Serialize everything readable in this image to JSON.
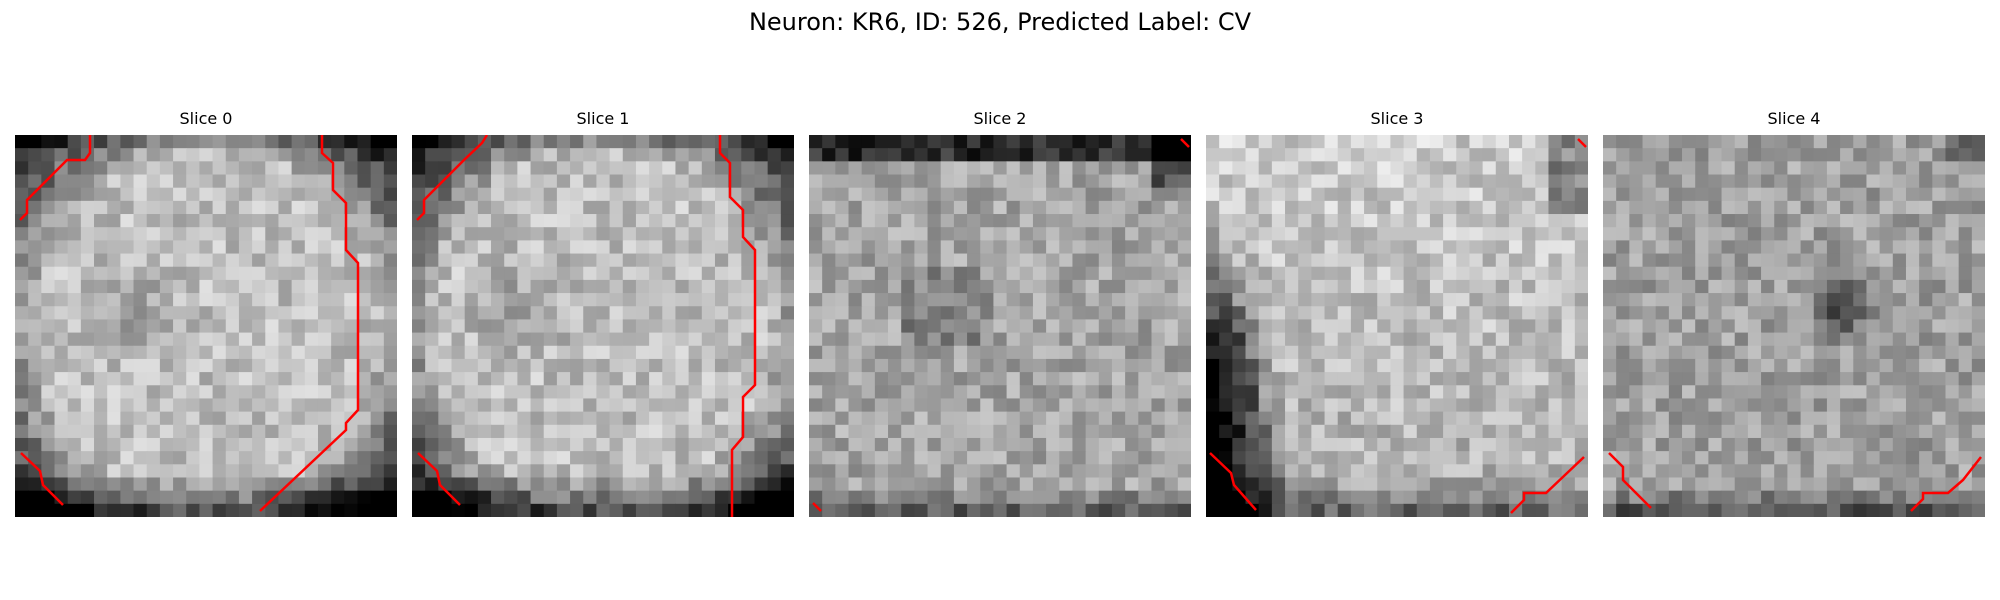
{
  "figure": {
    "title": "Neuron: KR6, ID: 526, Predicted Label: CV"
  },
  "panels": [
    {
      "title": "Slice 0",
      "seed": 11,
      "profile": "ring"
    },
    {
      "title": "Slice 1",
      "seed": 23,
      "profile": "ring"
    },
    {
      "title": "Slice 2",
      "seed": 37,
      "profile": "full"
    },
    {
      "title": "Slice 3",
      "seed": 41,
      "profile": "bright-left-dark"
    },
    {
      "title": "Slice 4",
      "seed": 53,
      "profile": "center-dark"
    }
  ],
  "colors": {
    "contour": "#ff0000",
    "colormap": "gray"
  }
}
